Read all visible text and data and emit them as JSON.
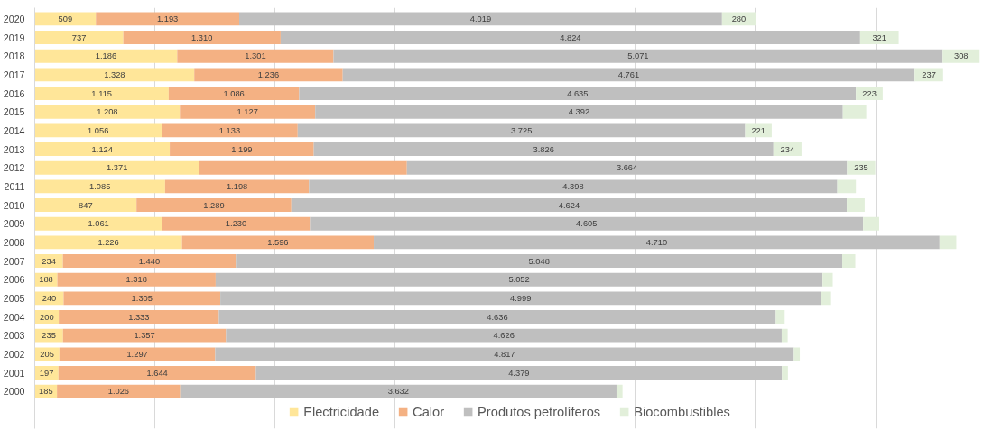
{
  "chart_data": {
    "type": "bar",
    "orientation": "horizontal",
    "stacked": true,
    "categories": [
      "2020",
      "2019",
      "2018",
      "2017",
      "2016",
      "2015",
      "2014",
      "2013",
      "2012",
      "2011",
      "2010",
      "2009",
      "2008",
      "2007",
      "2006",
      "2005",
      "2004",
      "2003",
      "2002",
      "2001",
      "2000"
    ],
    "tick_labels": "y",
    "grid": "x",
    "legend": "bottom",
    "series": [
      {
        "name": "Electricidade",
        "color": "#ffe699",
        "values": [
          509,
          737,
          1186,
          1328,
          1115,
          1208,
          1056,
          1124,
          1371,
          1085,
          847,
          1061,
          1226,
          234,
          188,
          240,
          200,
          235,
          205,
          197,
          185
        ],
        "value_labels": [
          "509",
          "737",
          "1.186",
          "1.328",
          "1.115",
          "1.208",
          "1.056",
          "1.124",
          "1.371",
          "1.085",
          "847",
          "1.061",
          "1.226",
          "234",
          "188",
          "240",
          "200",
          "235",
          "205",
          "197",
          "185"
        ]
      },
      {
        "name": "Calor",
        "color": "#f4b183",
        "values": [
          1193,
          1310,
          1301,
          1236,
          1086,
          1127,
          1133,
          1199,
          1727,
          1198,
          1289,
          1230,
          1596,
          1440,
          1318,
          1305,
          1333,
          1357,
          1297,
          1644,
          1026
        ],
        "value_labels": [
          "1.193",
          "1.310",
          "1.301",
          "1.236",
          "1.086",
          "1.127",
          "1.133",
          "1.199",
          null,
          "1.198",
          "1.289",
          "1.230",
          "1.596",
          "1.440",
          "1.318",
          "1.305",
          "1.333",
          "1.357",
          "1.297",
          "1.644",
          "1.026"
        ]
      },
      {
        "name": "Produtos petrolíferos",
        "color": "#bfbfbf",
        "values": [
          4019,
          4824,
          5071,
          4761,
          4635,
          4392,
          3725,
          3826,
          3664,
          4398,
          4624,
          4605,
          4710,
          5048,
          5052,
          4999,
          4636,
          4626,
          4817,
          4379,
          3632
        ],
        "value_labels": [
          "4.019",
          "4.824",
          "5.071",
          "4.761",
          "4.635",
          "4.392",
          "3.725",
          "3.826",
          "3.664",
          "4.398",
          "4.624",
          "4.605",
          "4.710",
          "5.048",
          "5.052",
          "4.999",
          "4.636",
          "4.626",
          "4.817",
          "4.379",
          "3.632"
        ]
      },
      {
        "name": "Biocombustibles",
        "color": "#e2efda",
        "values": [
          280,
          321,
          308,
          237,
          223,
          195,
          221,
          234,
          235,
          155,
          149,
          134,
          140,
          109,
          85,
          85,
          74,
          50,
          50,
          50,
          50
        ],
        "value_labels": [
          "280",
          "321",
          "308",
          "237",
          "223",
          null,
          "221",
          "234",
          "235",
          null,
          null,
          null,
          null,
          null,
          null,
          null,
          null,
          null,
          null,
          null,
          null
        ]
      }
    ]
  }
}
